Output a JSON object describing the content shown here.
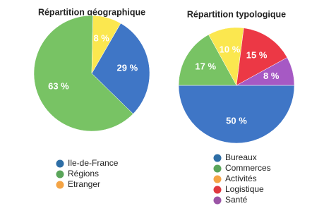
{
  "chart_data": [
    {
      "type": "pie",
      "title": "Répartition géographique",
      "categories": [
        "Ile-de-France",
        "Régions",
        "Etranger"
      ],
      "values": [
        29,
        63,
        8
      ],
      "value_labels": [
        "29 %",
        "63 %",
        "8 %"
      ],
      "colors": [
        "#3f76c6",
        "#78c364",
        "#fbe74f"
      ],
      "legend_colors": [
        "#2e6ea6",
        "#5aa55a",
        "#f4a445"
      ]
    },
    {
      "type": "pie",
      "title": "Répartition typologique",
      "categories": [
        "Bureaux",
        "Commerces",
        "Activités",
        "Logistique",
        "Santé"
      ],
      "values": [
        50,
        17,
        10,
        15,
        8
      ],
      "value_labels": [
        "50 %",
        "17 %",
        "10 %",
        "15 %",
        "8 %"
      ],
      "colors": [
        "#3f76c6",
        "#78c364",
        "#fbe74f",
        "#ec3845",
        "#a659c4"
      ],
      "legend_colors": [
        "#2e6ea6",
        "#5aa55a",
        "#f4a445",
        "#e0383f",
        "#9b55a6"
      ]
    }
  ]
}
